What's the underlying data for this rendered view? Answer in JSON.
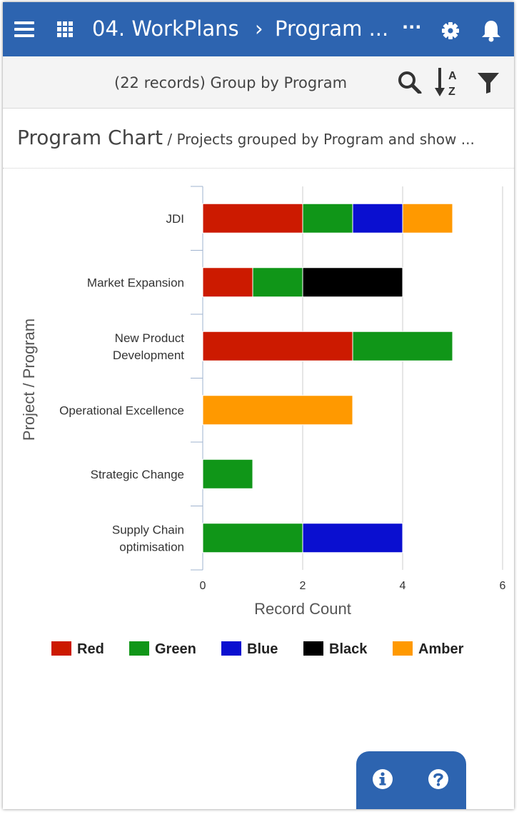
{
  "header": {
    "breadcrumb_root": "04. WorkPlans",
    "breadcrumb_sep": "›",
    "breadcrumb_current": "Program ...",
    "more": "···"
  },
  "toolbar": {
    "records_label": "(22 records)  Group by Program"
  },
  "chart_header": {
    "title": "Program Chart",
    "subtitle": " / Projects grouped by Program and show ..."
  },
  "colors": {
    "brand": "#2d64b0",
    "Red": "#cc1a00",
    "Green": "#109618",
    "Blue": "#0a0fd0",
    "Black": "#000000",
    "Amber": "#ff9900"
  },
  "chart_data": {
    "type": "bar",
    "orientation": "horizontal",
    "stacked": true,
    "categories": [
      [
        "JDI"
      ],
      [
        "Market Expansion"
      ],
      [
        "New Product",
        "Development"
      ],
      [
        "Operational Excellence"
      ],
      [
        "Strategic Change"
      ],
      [
        "Supply Chain",
        "optimisation"
      ]
    ],
    "series": [
      {
        "name": "Red",
        "color": "#cc1a00",
        "values": [
          2,
          1,
          3,
          0,
          0,
          0
        ]
      },
      {
        "name": "Green",
        "color": "#109618",
        "values": [
          1,
          1,
          2,
          0,
          1,
          2
        ]
      },
      {
        "name": "Blue",
        "color": "#0a0fd0",
        "values": [
          1,
          0,
          0,
          0,
          0,
          2
        ]
      },
      {
        "name": "Black",
        "color": "#000000",
        "values": [
          0,
          2,
          0,
          0,
          0,
          0
        ]
      },
      {
        "name": "Amber",
        "color": "#ff9900",
        "values": [
          1,
          0,
          0,
          3,
          0,
          0
        ]
      }
    ],
    "xlabel": "Record Count",
    "ylabel": "Project / Program",
    "xlim": [
      0,
      6
    ],
    "xticks": [
      0,
      2,
      4,
      6
    ],
    "grid": true,
    "legend": "bottom"
  }
}
